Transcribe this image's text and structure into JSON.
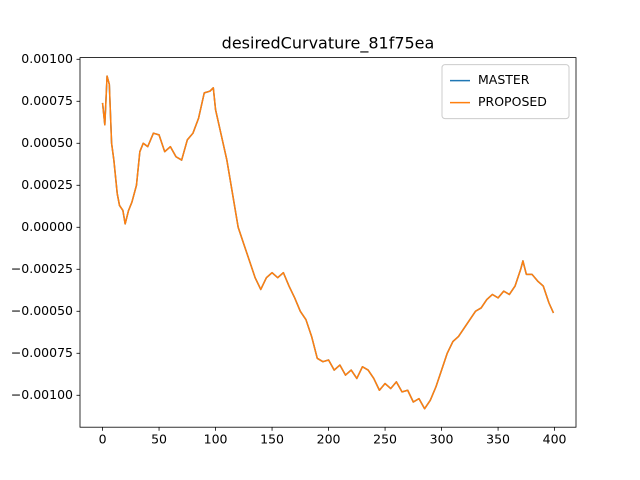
{
  "chart_data": {
    "type": "line",
    "title": "desiredCurvature_81f75ea",
    "x": [
      0,
      2,
      4,
      6,
      8,
      10,
      13,
      15,
      18,
      20,
      23,
      26,
      30,
      33,
      36,
      40,
      45,
      50,
      55,
      60,
      65,
      70,
      75,
      80,
      85,
      90,
      95,
      98,
      100,
      105,
      110,
      115,
      120,
      125,
      130,
      135,
      140,
      145,
      150,
      155,
      160,
      165,
      170,
      175,
      180,
      185,
      190,
      195,
      200,
      205,
      210,
      215,
      220,
      225,
      230,
      235,
      240,
      245,
      250,
      255,
      260,
      265,
      270,
      275,
      280,
      285,
      290,
      295,
      300,
      305,
      310,
      315,
      320,
      325,
      330,
      335,
      340,
      345,
      350,
      355,
      360,
      365,
      370,
      372,
      375,
      380,
      385,
      390,
      395,
      399
    ],
    "series": [
      {
        "name": "MASTER",
        "color": "#1f77b4",
        "values": [
          0.00074,
          0.00061,
          0.0009,
          0.00085,
          0.0005,
          0.0004,
          0.0002,
          0.00013,
          0.0001,
          2e-05,
          0.0001,
          0.00015,
          0.00025,
          0.00045,
          0.0005,
          0.00048,
          0.00056,
          0.00055,
          0.00045,
          0.00048,
          0.00042,
          0.0004,
          0.00052,
          0.00056,
          0.00065,
          0.0008,
          0.00081,
          0.00083,
          0.0007,
          0.00055,
          0.0004,
          0.0002,
          0,
          -0.0001,
          -0.0002,
          -0.0003,
          -0.00037,
          -0.0003,
          -0.00027,
          -0.0003,
          -0.00027,
          -0.00035,
          -0.00042,
          -0.0005,
          -0.00055,
          -0.00065,
          -0.00078,
          -0.0008,
          -0.00079,
          -0.00085,
          -0.00082,
          -0.00088,
          -0.00085,
          -0.0009,
          -0.00083,
          -0.00085,
          -0.0009,
          -0.00097,
          -0.00093,
          -0.00096,
          -0.00092,
          -0.00098,
          -0.00097,
          -0.00104,
          -0.00102,
          -0.00108,
          -0.00103,
          -0.00095,
          -0.00085,
          -0.00075,
          -0.00068,
          -0.00065,
          -0.0006,
          -0.00055,
          -0.0005,
          -0.00048,
          -0.00043,
          -0.0004,
          -0.00042,
          -0.00038,
          -0.0004,
          -0.00035,
          -0.00025,
          -0.0002,
          -0.00028,
          -0.00028,
          -0.00032,
          -0.00035,
          -0.00045,
          -0.00051
        ]
      },
      {
        "name": "PROPOSED",
        "color": "#ff7f0e",
        "values": [
          0.00074,
          0.00061,
          0.0009,
          0.00085,
          0.0005,
          0.0004,
          0.0002,
          0.00013,
          0.0001,
          2e-05,
          0.0001,
          0.00015,
          0.00025,
          0.00045,
          0.0005,
          0.00048,
          0.00056,
          0.00055,
          0.00045,
          0.00048,
          0.00042,
          0.0004,
          0.00052,
          0.00056,
          0.00065,
          0.0008,
          0.00081,
          0.00083,
          0.0007,
          0.00055,
          0.0004,
          0.0002,
          0,
          -0.0001,
          -0.0002,
          -0.0003,
          -0.00037,
          -0.0003,
          -0.00027,
          -0.0003,
          -0.00027,
          -0.00035,
          -0.00042,
          -0.0005,
          -0.00055,
          -0.00065,
          -0.00078,
          -0.0008,
          -0.00079,
          -0.00085,
          -0.00082,
          -0.00088,
          -0.00085,
          -0.0009,
          -0.00083,
          -0.00085,
          -0.0009,
          -0.00097,
          -0.00093,
          -0.00096,
          -0.00092,
          -0.00098,
          -0.00097,
          -0.00104,
          -0.00102,
          -0.00108,
          -0.00103,
          -0.00095,
          -0.00085,
          -0.00075,
          -0.00068,
          -0.00065,
          -0.0006,
          -0.00055,
          -0.0005,
          -0.00048,
          -0.00043,
          -0.0004,
          -0.00042,
          -0.00038,
          -0.0004,
          -0.00035,
          -0.00025,
          -0.0002,
          -0.00028,
          -0.00028,
          -0.00032,
          -0.00035,
          -0.00045,
          -0.00051
        ]
      }
    ],
    "xlim": [
      -19.95,
      418.95
    ],
    "xticks": [
      0,
      50,
      100,
      150,
      200,
      250,
      300,
      350,
      400
    ],
    "ylim": [
      -0.00119,
      0.00101
    ],
    "yticks": [
      {
        "value": 0.001,
        "label": "0.00100"
      },
      {
        "value": 0.00075,
        "label": "0.00075"
      },
      {
        "value": 0.0005,
        "label": "0.00050"
      },
      {
        "value": 0.00025,
        "label": "0.00025"
      },
      {
        "value": 0,
        "label": "0.00000"
      },
      {
        "value": -0.00025,
        "label": "−0.00025"
      },
      {
        "value": -0.0005,
        "label": "−0.00050"
      },
      {
        "value": -0.00075,
        "label": "−0.00075"
      },
      {
        "value": -0.001,
        "label": "−0.00100"
      }
    ],
    "legend": "upper right",
    "grid": false
  }
}
